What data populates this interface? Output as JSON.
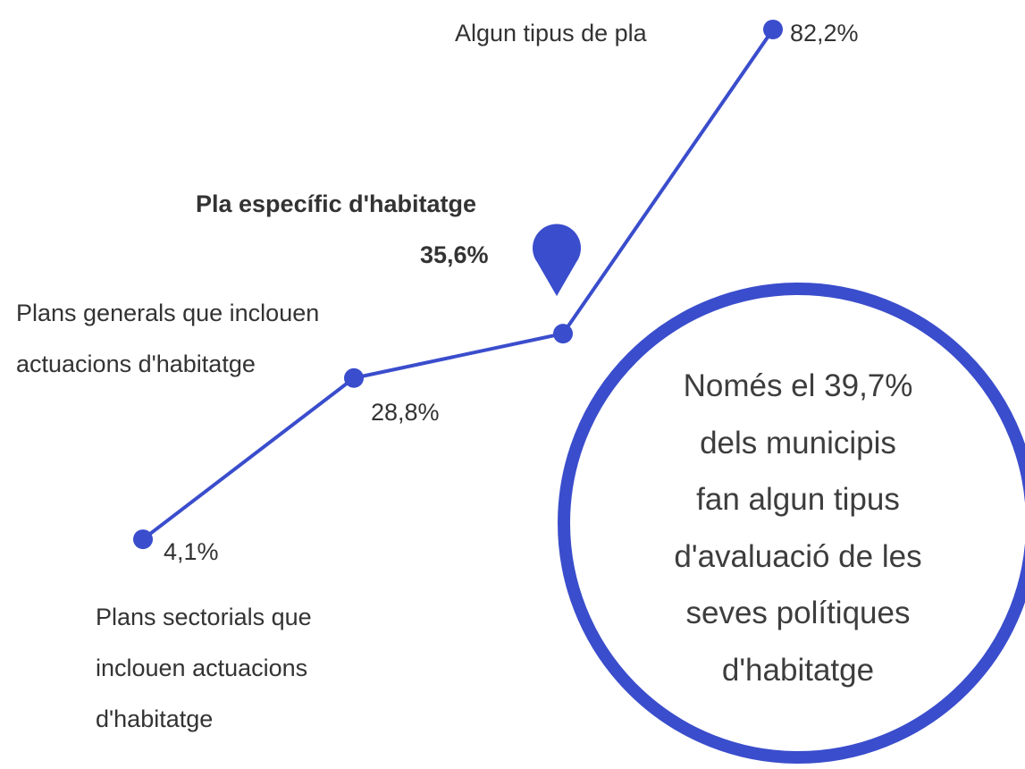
{
  "chart_data": {
    "type": "line",
    "categories": [
      "Plans sectorials que inclouen actuacions d'habitatge",
      "Plans generals que inclouen actuacions d'habitatge",
      "Pla específic d'habitatge",
      "Algun tipus de pla"
    ],
    "values": [
      4.1,
      28.8,
      35.6,
      82.2
    ],
    "value_labels": [
      "4,1%",
      "28,8%",
      "35,6%",
      "82,2%"
    ],
    "color": "#3a4dcc",
    "highlight": 2,
    "annotation": [
      "Només el 39,7%",
      "dels municipis",
      "fan algun tipus",
      "d'avaluació de les",
      "seves polítiques",
      "d'habitatge"
    ]
  }
}
